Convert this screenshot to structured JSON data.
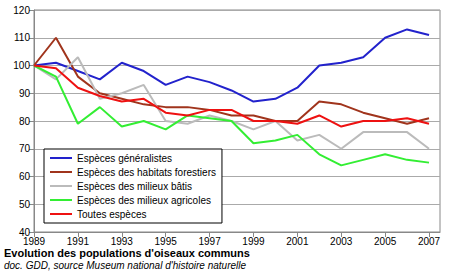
{
  "chart_data": {
    "type": "line",
    "title": "Evolution des populations d'oiseaux communs",
    "subtitle": "doc. GDD, source Museum national d'histoire naturelle",
    "x": [
      1989,
      1990,
      1991,
      1992,
      1993,
      1994,
      1995,
      1996,
      1997,
      1998,
      1999,
      2000,
      2001,
      2002,
      2003,
      2004,
      2005,
      2006,
      2007
    ],
    "series": [
      {
        "name": "Espèces généralistes",
        "color": "#2222cc",
        "values": [
          100,
          101,
          98,
          95,
          101,
          98,
          93,
          96,
          94,
          91,
          87,
          88,
          92,
          100,
          101,
          103,
          110,
          113,
          111
        ]
      },
      {
        "name": "Espèces des habitats forestiers",
        "color": "#a0341c",
        "values": [
          100,
          110,
          96,
          90,
          88,
          86,
          85,
          85,
          84,
          82,
          82,
          80,
          80,
          87,
          86,
          83,
          81,
          79,
          81
        ]
      },
      {
        "name": "Espèces des milieux bâtis",
        "color": "#bbbbbb",
        "values": [
          100,
          95,
          103,
          88,
          90,
          93,
          80,
          79,
          82,
          80,
          77,
          80,
          73,
          75,
          70,
          76,
          76,
          76,
          70
        ]
      },
      {
        "name": "Espèces des milieux agricoles",
        "color": "#33ee33",
        "values": [
          100,
          96,
          79,
          85,
          78,
          80,
          77,
          82,
          81,
          80,
          72,
          73,
          75,
          68,
          64,
          66,
          68,
          66,
          65
        ]
      },
      {
        "name": "Toutes espèces",
        "color": "#ee1111",
        "values": [
          100,
          99,
          92,
          89,
          87,
          88,
          83,
          82,
          84,
          84,
          80,
          80,
          79,
          82,
          78,
          80,
          80,
          81,
          79
        ]
      }
    ],
    "xlim": [
      1989,
      2007.5
    ],
    "xticks": [
      1989,
      1991,
      1993,
      1995,
      1997,
      1999,
      2001,
      2003,
      2005,
      2007
    ],
    "ylim": [
      40,
      120
    ],
    "yticks": [
      40,
      50,
      60,
      70,
      80,
      90,
      100,
      110,
      120
    ],
    "grid": true,
    "legend": "lower left"
  }
}
